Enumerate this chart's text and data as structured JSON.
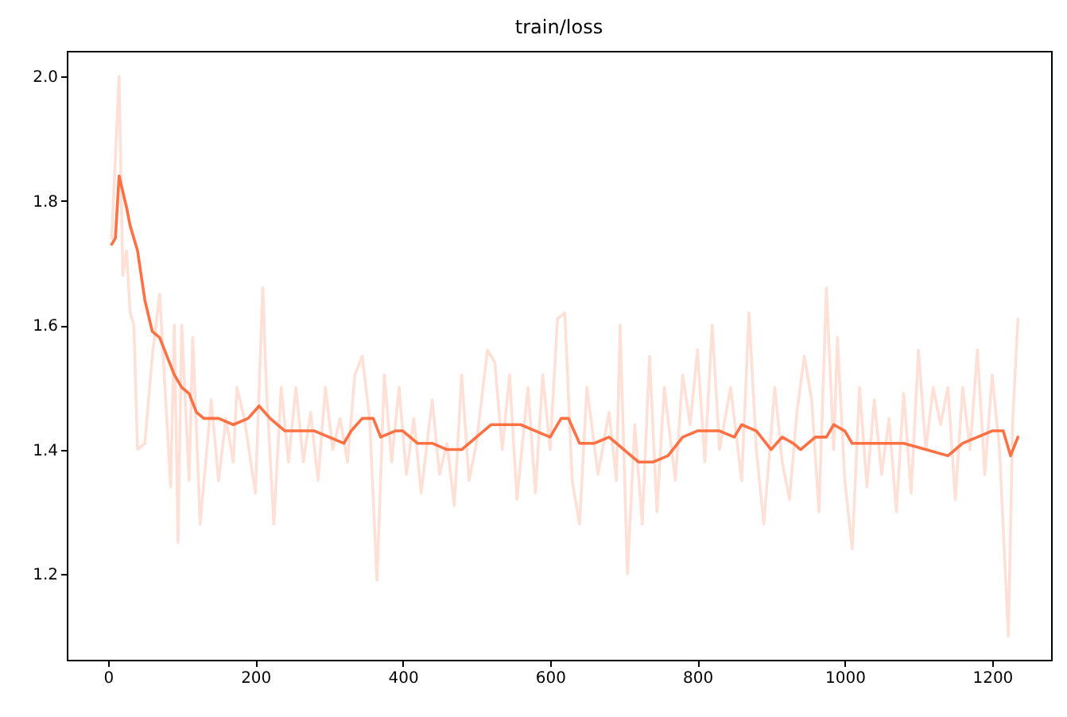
{
  "chart_data": {
    "type": "line",
    "title": "train/loss",
    "xlim": [
      -56,
      1280
    ],
    "ylim": [
      1.062,
      2.041
    ],
    "xticks": [
      0,
      200,
      400,
      600,
      800,
      1000,
      1200
    ],
    "yticks": [
      1.2,
      1.4,
      1.6,
      1.8,
      {
        "value": 2,
        "label": "2.0"
      }
    ],
    "grid": false,
    "legend": false,
    "series": [
      {
        "color": "#ffe0d6",
        "x": [
          5,
          15,
          20,
          25,
          30,
          35,
          40,
          50,
          60,
          70,
          85,
          90,
          95,
          100,
          110,
          115,
          125,
          140,
          150,
          160,
          170,
          175,
          185,
          200,
          210,
          215,
          225,
          235,
          245,
          255,
          265,
          275,
          285,
          295,
          305,
          315,
          325,
          335,
          345,
          355,
          365,
          375,
          385,
          395,
          405,
          415,
          425,
          440,
          450,
          460,
          470,
          480,
          490,
          500,
          515,
          525,
          535,
          545,
          555,
          570,
          580,
          590,
          600,
          610,
          620,
          630,
          640,
          650,
          665,
          680,
          690,
          695,
          705,
          715,
          725,
          735,
          745,
          755,
          770,
          780,
          790,
          800,
          810,
          820,
          830,
          845,
          860,
          870,
          880,
          890,
          905,
          915,
          925,
          935,
          945,
          955,
          965,
          975,
          985,
          990,
          1000,
          1010,
          1020,
          1030,
          1040,
          1050,
          1060,
          1070,
          1080,
          1090,
          1100,
          1110,
          1120,
          1130,
          1140,
          1150,
          1160,
          1170,
          1180,
          1190,
          1200,
          1210,
          1222,
          1228,
          1235
        ],
        "values": [
          1.74,
          2.0,
          1.68,
          1.72,
          1.62,
          1.6,
          1.4,
          1.41,
          1.55,
          1.65,
          1.34,
          1.6,
          1.25,
          1.6,
          1.35,
          1.58,
          1.28,
          1.48,
          1.35,
          1.45,
          1.38,
          1.5,
          1.45,
          1.33,
          1.66,
          1.5,
          1.28,
          1.5,
          1.38,
          1.5,
          1.38,
          1.46,
          1.35,
          1.5,
          1.4,
          1.45,
          1.38,
          1.52,
          1.55,
          1.45,
          1.19,
          1.52,
          1.38,
          1.5,
          1.36,
          1.45,
          1.33,
          1.48,
          1.36,
          1.41,
          1.31,
          1.52,
          1.35,
          1.41,
          1.56,
          1.54,
          1.4,
          1.52,
          1.32,
          1.5,
          1.33,
          1.52,
          1.4,
          1.61,
          1.62,
          1.35,
          1.28,
          1.5,
          1.36,
          1.46,
          1.35,
          1.6,
          1.2,
          1.44,
          1.28,
          1.55,
          1.3,
          1.5,
          1.35,
          1.52,
          1.44,
          1.56,
          1.38,
          1.6,
          1.4,
          1.5,
          1.35,
          1.62,
          1.4,
          1.28,
          1.5,
          1.38,
          1.32,
          1.46,
          1.55,
          1.48,
          1.3,
          1.66,
          1.4,
          1.58,
          1.35,
          1.24,
          1.5,
          1.34,
          1.48,
          1.36,
          1.45,
          1.3,
          1.49,
          1.33,
          1.56,
          1.4,
          1.5,
          1.44,
          1.5,
          1.32,
          1.5,
          1.4,
          1.56,
          1.36,
          1.52,
          1.4,
          1.1,
          1.45,
          1.61
        ]
      },
      {
        "color": "#ff7043",
        "x": [
          5,
          10,
          15,
          25,
          30,
          40,
          50,
          60,
          70,
          80,
          90,
          100,
          110,
          120,
          130,
          150,
          170,
          190,
          205,
          220,
          240,
          260,
          280,
          300,
          320,
          330,
          345,
          360,
          370,
          390,
          400,
          420,
          440,
          460,
          480,
          500,
          520,
          540,
          560,
          580,
          600,
          615,
          625,
          640,
          660,
          680,
          690,
          710,
          720,
          740,
          760,
          780,
          800,
          830,
          850,
          860,
          880,
          900,
          915,
          930,
          940,
          960,
          975,
          985,
          1000,
          1010,
          1050,
          1080,
          1110,
          1140,
          1160,
          1180,
          1200,
          1215,
          1225,
          1235
        ],
        "values": [
          1.73,
          1.74,
          1.84,
          1.79,
          1.76,
          1.72,
          1.64,
          1.59,
          1.58,
          1.55,
          1.52,
          1.5,
          1.49,
          1.46,
          1.45,
          1.45,
          1.44,
          1.45,
          1.47,
          1.45,
          1.43,
          1.43,
          1.43,
          1.42,
          1.41,
          1.43,
          1.45,
          1.45,
          1.42,
          1.43,
          1.43,
          1.41,
          1.41,
          1.4,
          1.4,
          1.42,
          1.44,
          1.44,
          1.44,
          1.43,
          1.42,
          1.45,
          1.45,
          1.41,
          1.41,
          1.42,
          1.41,
          1.39,
          1.38,
          1.38,
          1.39,
          1.42,
          1.43,
          1.43,
          1.42,
          1.44,
          1.43,
          1.4,
          1.42,
          1.41,
          1.4,
          1.42,
          1.42,
          1.44,
          1.43,
          1.41,
          1.41,
          1.41,
          1.4,
          1.39,
          1.41,
          1.42,
          1.43,
          1.43,
          1.39,
          1.42
        ]
      }
    ]
  }
}
